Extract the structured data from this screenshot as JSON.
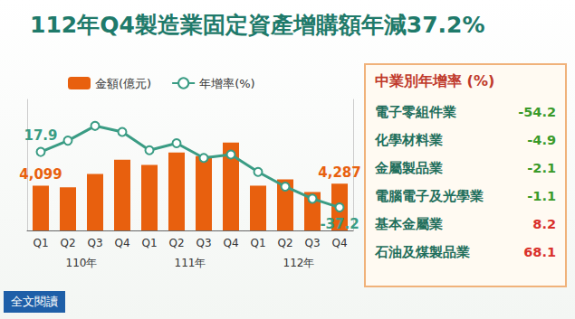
{
  "chart_data": {
    "type": "bar",
    "title": "112年Q4製造業固定資產增購額年減37.2%",
    "categories": [
      "Q1",
      "Q2",
      "Q3",
      "Q4",
      "Q1",
      "Q2",
      "Q3",
      "Q4",
      "Q1",
      "Q2",
      "Q3",
      "Q4"
    ],
    "groups": [
      "110年",
      "111年",
      "112年"
    ],
    "series": [
      {
        "name": "金額(億元)",
        "type": "bar",
        "color": "#e8600e",
        "values": [
          4099,
          3950,
          5170,
          6480,
          5990,
          7130,
          6800,
          8040,
          4100,
          4670,
          3520,
          4287
        ],
        "value_labels": [
          "4,099",
          null,
          null,
          null,
          null,
          null,
          null,
          null,
          null,
          null,
          null,
          "4,287"
        ]
      },
      {
        "name": "年增率(%)",
        "type": "line",
        "axis": "y2",
        "color": "#3a9c84",
        "marker": "circle",
        "values": [
          17.9,
          29.1,
          43.7,
          37.7,
          19.6,
          26.5,
          11.9,
          15.3,
          -1.9,
          -16.5,
          -28.5,
          -37.2
        ],
        "value_labels": [
          "17.9",
          null,
          null,
          null,
          null,
          null,
          null,
          null,
          null,
          null,
          null,
          "-37.2"
        ]
      }
    ],
    "ylim": [
      0,
      12000
    ],
    "y2lim": [
      -60,
      70
    ],
    "tick_labels": "x",
    "grid": false,
    "legend": "top"
  },
  "panel": {
    "title": "中業別年增率 (%)",
    "rows": [
      [
        "電子零組件業",
        -54.2
      ],
      [
        "化學材料業",
        -4.9
      ],
      [
        "金屬製品業",
        -2.1
      ],
      [
        "電腦電子及光學業",
        -1.1
      ],
      [
        "基本金屬業",
        8.2
      ],
      [
        "石油及煤製品業",
        68.1
      ]
    ]
  },
  "button": "全文閱讀"
}
